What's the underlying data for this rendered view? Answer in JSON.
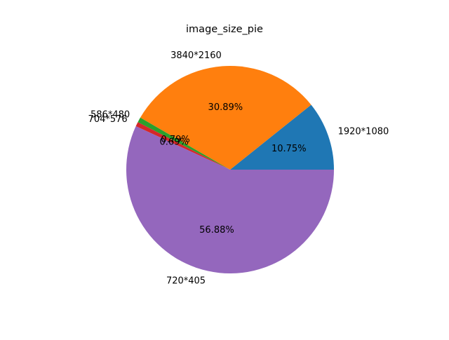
{
  "chart_data": {
    "type": "pie",
    "title": "image_size_pie",
    "start_angle_deg": 0,
    "direction": "counterclockwise",
    "slices": [
      {
        "label": "1920*1080",
        "value": 10.75,
        "pct_label": "10.75%",
        "color": "#1f77b4"
      },
      {
        "label": "3840*2160",
        "value": 30.89,
        "pct_label": "30.89%",
        "color": "#ff7f0e"
      },
      {
        "label": "586*480",
        "value": 0.79,
        "pct_label": "0.79%",
        "color": "#2ca02c"
      },
      {
        "label": "704*576",
        "value": 0.69,
        "pct_label": "0.69%",
        "color": "#d62728"
      },
      {
        "label": "720*405",
        "value": 56.88,
        "pct_label": "56.88%",
        "color": "#9467bd"
      }
    ]
  }
}
